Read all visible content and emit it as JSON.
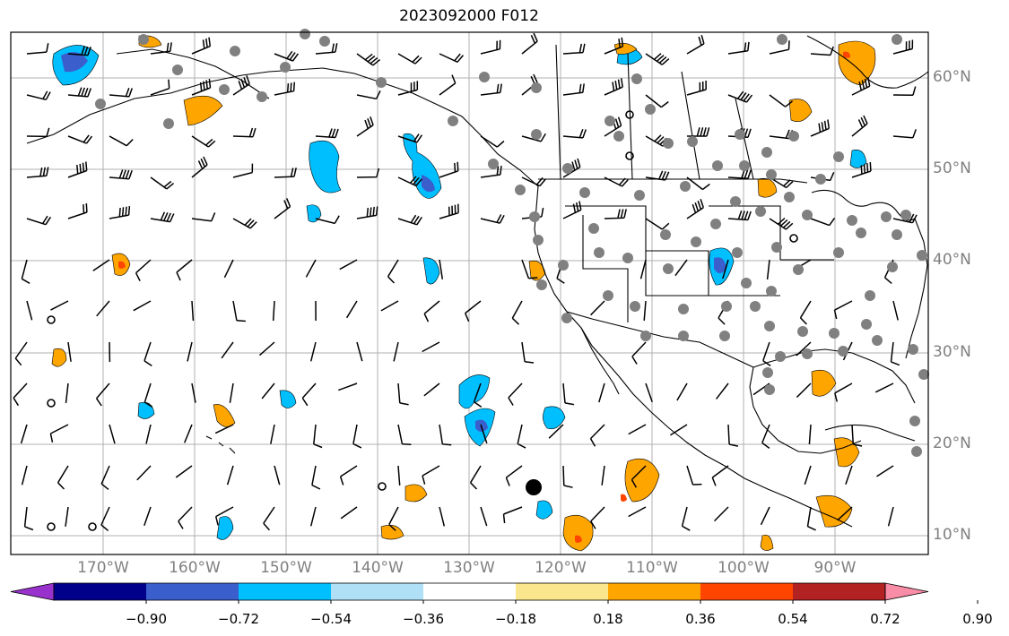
{
  "title": "2023092000 F012",
  "lon_labels": [
    "170°W",
    "160°W",
    "150°W",
    "140°W",
    "130°W",
    "120°W",
    "110°W",
    "100°W",
    "90°W"
  ],
  "lat_labels": [
    "60°N",
    "50°N",
    "40°N",
    "30°N",
    "20°N",
    "10°N"
  ],
  "colorbar": {
    "labels": [
      "−0.90",
      "−0.72",
      "−0.54",
      "−0.36",
      "−0.18",
      "0.18",
      "0.36",
      "0.54",
      "0.72",
      "0.90"
    ],
    "colors": [
      "#9932cc",
      "#00008b",
      "#3a5fcd",
      "#00bfff",
      "#b0e0f6",
      "#ffffff",
      "#fae68c",
      "#ffa500",
      "#ff4500",
      "#b22222",
      "#f98ca6"
    ]
  },
  "colors": {
    "coast": "#000000",
    "grid": "#b0b0b0",
    "station_dot": "#808080",
    "low_blue_fill": "#00bfff",
    "low_dark_fill": "#3a5fcd",
    "high_orange_fill": "#ffa500",
    "high_red_fill": "#ff4500"
  }
}
